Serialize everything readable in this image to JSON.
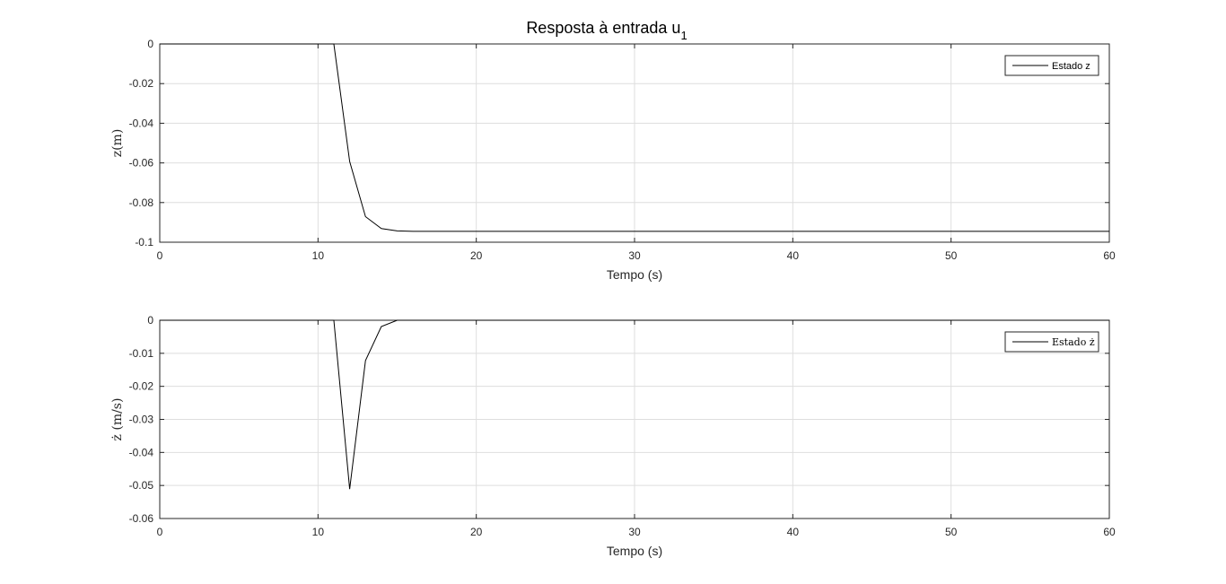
{
  "title": {
    "main": "Resposta à entrada u",
    "subscript": "1"
  },
  "chart_data": [
    {
      "type": "line",
      "xlabel": "Tempo (s)",
      "ylabel": "z(m)",
      "xlim": [
        0,
        60
      ],
      "ylim": [
        -0.1,
        0
      ],
      "xticks": [
        0,
        10,
        20,
        30,
        40,
        50,
        60
      ],
      "yticks": [
        0,
        -0.02,
        -0.04,
        -0.06,
        -0.08,
        -0.1
      ],
      "ytick_labels": [
        "0",
        "-0.02",
        "-0.04",
        "-0.06",
        "-0.08",
        "-0.1"
      ],
      "grid": true,
      "legend_position": "top-right",
      "series": [
        {
          "name": "Estado z",
          "color": "#000000",
          "x": [
            0,
            1,
            2,
            3,
            4,
            5,
            6,
            7,
            8,
            9,
            10,
            11,
            12,
            13,
            14,
            15,
            16,
            17,
            18,
            19,
            20,
            25,
            30,
            35,
            40,
            45,
            50,
            55,
            60
          ],
          "y": [
            0,
            0,
            0,
            0,
            0,
            0,
            0,
            0,
            0,
            0,
            0,
            0,
            -0.0593,
            -0.0871,
            -0.0931,
            -0.0943,
            -0.0945,
            -0.0945,
            -0.0945,
            -0.0945,
            -0.0945,
            -0.0945,
            -0.0945,
            -0.0945,
            -0.0945,
            -0.0945,
            -0.0945,
            -0.0945,
            -0.0945
          ]
        }
      ]
    },
    {
      "type": "line",
      "xlabel": "Tempo (s)",
      "ylabel": "ż (m/s)",
      "xlim": [
        0,
        60
      ],
      "ylim": [
        -0.06,
        0
      ],
      "xticks": [
        0,
        10,
        20,
        30,
        40,
        50,
        60
      ],
      "yticks": [
        0,
        -0.01,
        -0.02,
        -0.03,
        -0.04,
        -0.05,
        -0.06
      ],
      "ytick_labels": [
        "0",
        "-0.01",
        "-0.02",
        "-0.03",
        "-0.04",
        "-0.05",
        "-0.06"
      ],
      "grid": true,
      "legend_position": "top-right",
      "series": [
        {
          "name": "Estado ż",
          "color": "#000000",
          "x": [
            0,
            1,
            2,
            3,
            4,
            5,
            6,
            7,
            8,
            9,
            10,
            11,
            12,
            13,
            14,
            15,
            16,
            17,
            18,
            19,
            20,
            25,
            30,
            35,
            40,
            45,
            50,
            55,
            60
          ],
          "y": [
            0,
            0,
            0,
            0,
            0,
            0,
            0,
            0,
            0,
            0,
            0,
            0,
            -0.0511,
            -0.0122,
            -0.0019,
            0,
            0,
            0,
            0,
            0,
            0,
            0,
            0,
            0,
            0,
            0,
            0,
            0,
            0
          ]
        }
      ]
    }
  ]
}
